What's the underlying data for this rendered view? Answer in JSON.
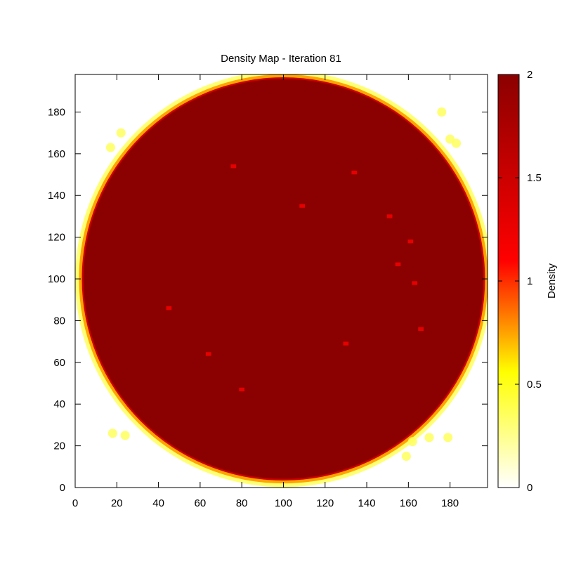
{
  "chart_data": {
    "type": "heatmap",
    "title": "Density Map - Iteration 81",
    "xlim": [
      0,
      198
    ],
    "ylim": [
      0,
      198
    ],
    "x_ticks": [
      "0",
      "20",
      "40",
      "60",
      "80",
      "100",
      "120",
      "140",
      "160",
      "180"
    ],
    "y_ticks": [
      "0",
      "20",
      "40",
      "60",
      "80",
      "100",
      "120",
      "140",
      "160",
      "180"
    ],
    "colorbar": {
      "label": "Density",
      "range": [
        0,
        2
      ],
      "ticks": [
        "0",
        "0.5",
        "1",
        "1.5",
        "2"
      ],
      "colormap": [
        "#ffffff",
        "#ffff00",
        "#ff7700",
        "#ff0000",
        "#8b0000"
      ]
    },
    "field": {
      "shape": "disk",
      "center": [
        100,
        100
      ],
      "radius": 96,
      "interior_density": 2,
      "edge_bands": [
        {
          "band": 0.8,
          "density": 1.5
        },
        {
          "band": 2.2,
          "density": 0.75
        },
        {
          "band": 4.0,
          "density": 0.3
        }
      ],
      "edge_spots": [
        [
          22,
          170
        ],
        [
          17,
          163
        ],
        [
          18,
          26
        ],
        [
          24,
          25
        ],
        [
          162,
          22
        ],
        [
          170,
          24
        ],
        [
          179,
          24
        ],
        [
          159,
          15
        ],
        [
          176,
          180
        ],
        [
          180,
          167
        ],
        [
          183,
          165
        ]
      ],
      "interior_spots": [
        [
          45,
          86
        ],
        [
          64,
          64
        ],
        [
          80,
          47
        ],
        [
          109,
          135
        ],
        [
          130,
          69
        ],
        [
          134,
          151
        ],
        [
          151,
          130
        ],
        [
          155,
          107
        ],
        [
          163,
          98
        ],
        [
          166,
          76
        ],
        [
          161,
          118
        ],
        [
          76,
          154
        ]
      ]
    }
  }
}
